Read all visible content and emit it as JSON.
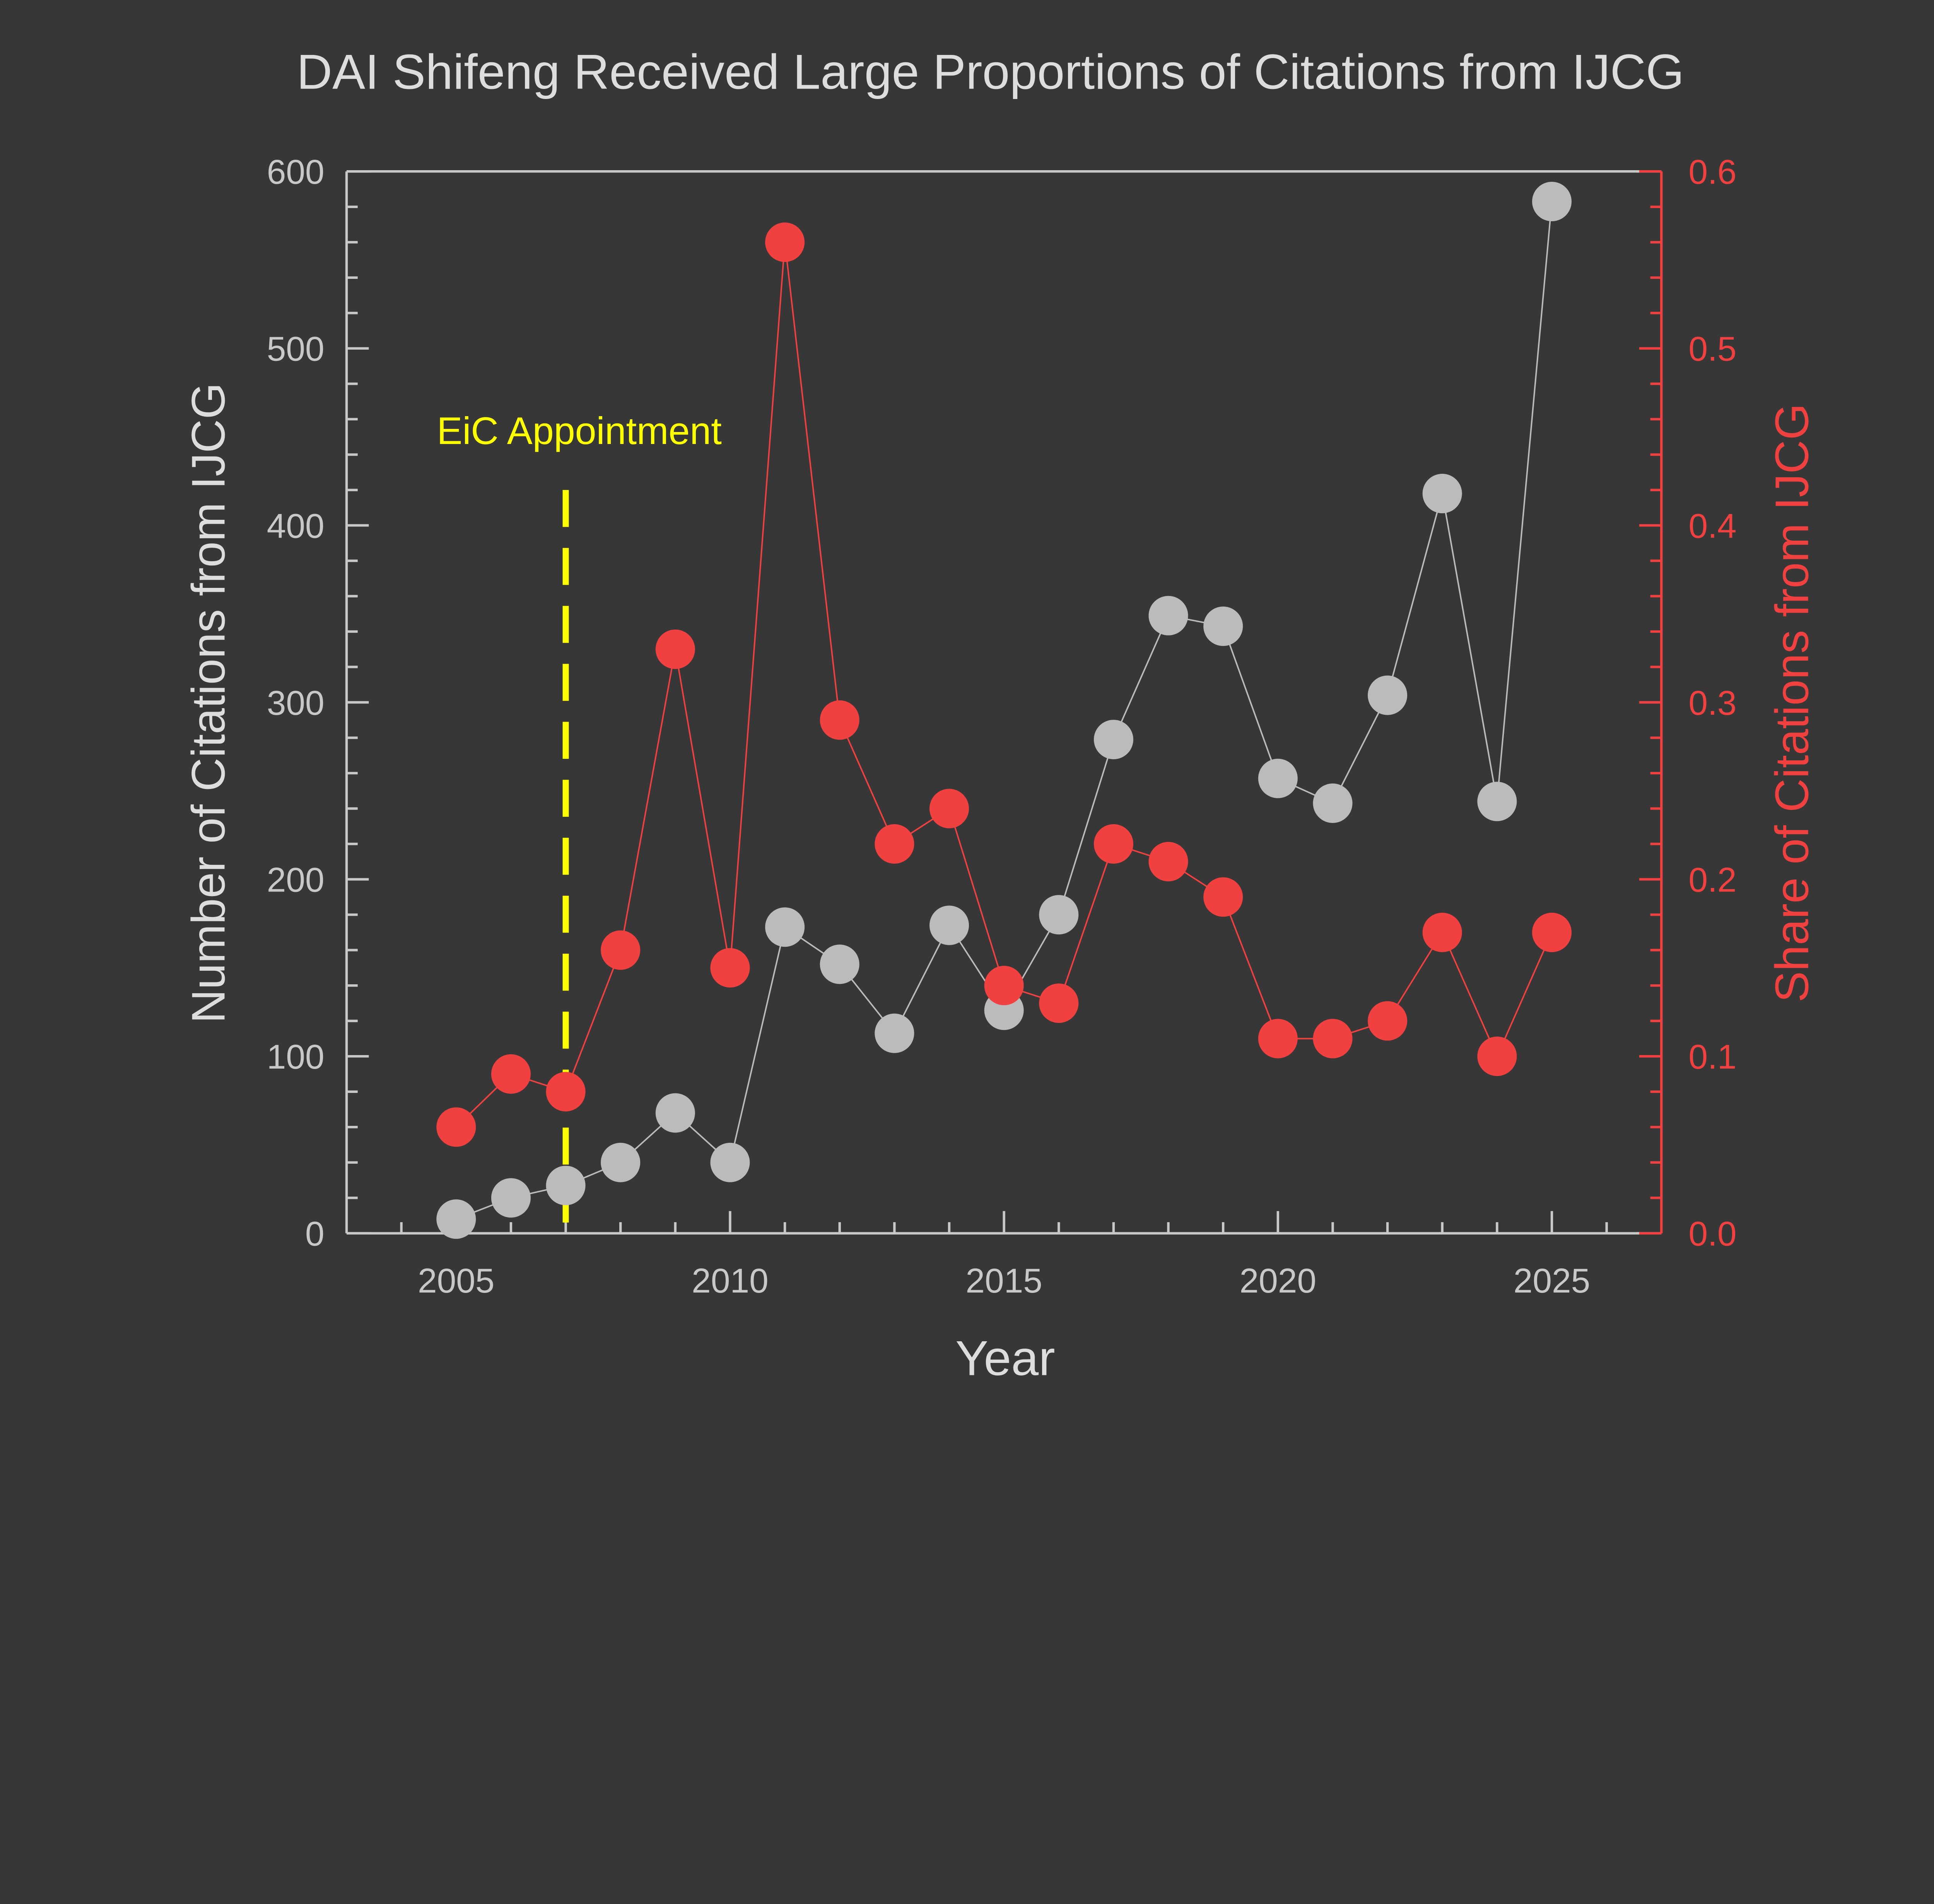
{
  "chart_data": {
    "type": "line",
    "title": "DAI Shifeng Received Large Proportions of Citations from IJCG",
    "xlabel": "Year",
    "ylabel_left": "Number of Citations from IJCG",
    "ylabel_right": "Share of Citations from IJCG",
    "xlim": [
      2003,
      2027
    ],
    "ylim_left": [
      0,
      600
    ],
    "ylim_right": [
      0,
      0.6
    ],
    "x_ticks": [
      2005,
      2010,
      2015,
      2020,
      2025
    ],
    "y_ticks_left": [
      0,
      100,
      200,
      300,
      400,
      500,
      600
    ],
    "y_ticks_right": [
      "0.0",
      "0.1",
      "0.2",
      "0.3",
      "0.4",
      "0.5",
      "0.6"
    ],
    "grid": false,
    "x": [
      2005,
      2006,
      2007,
      2008,
      2009,
      2010,
      2011,
      2012,
      2013,
      2014,
      2015,
      2016,
      2017,
      2018,
      2019,
      2020,
      2021,
      2022,
      2023,
      2024,
      2025
    ],
    "series": [
      {
        "axis": "left",
        "color": "#bbbbbb",
        "values": [
          8,
          20,
          27,
          40,
          68,
          40,
          173,
          152,
          113,
          174,
          126,
          180,
          279,
          349,
          343,
          257,
          243,
          304,
          418,
          244,
          583
        ]
      },
      {
        "axis": "right",
        "color": "#f04040",
        "values": [
          0.06,
          0.09,
          0.08,
          0.16,
          0.33,
          0.15,
          0.56,
          0.29,
          0.22,
          0.24,
          0.14,
          0.13,
          0.22,
          0.21,
          0.19,
          0.11,
          0.11,
          0.12,
          0.17,
          0.1,
          0.17
        ]
      }
    ],
    "annotation": {
      "text": "EiC Appointment",
      "x": 2007,
      "line_top_value": 420,
      "color": "#ffff00"
    },
    "colors": {
      "background": "#373737",
      "axis": "#c8c8c8",
      "right_axis": "#f04040"
    }
  }
}
